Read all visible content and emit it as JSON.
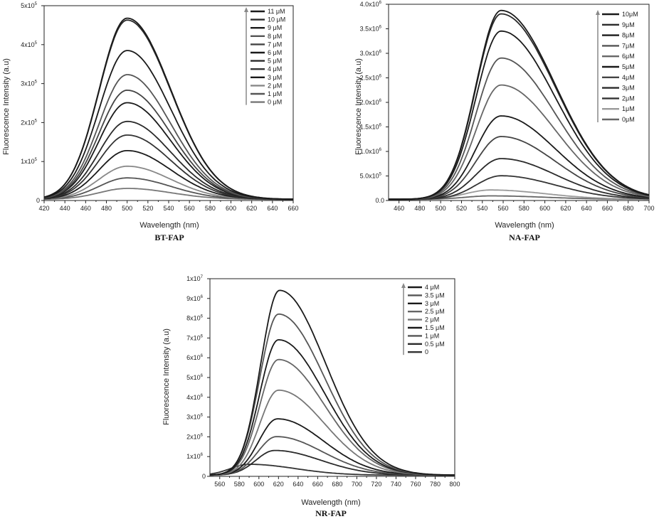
{
  "chart_data": [
    {
      "type": "line",
      "caption": "BT-FAP",
      "xlabel": "Wavelength (nm)",
      "ylabel": "Fluorescence Intensity (a.u)",
      "xlim": [
        420,
        660
      ],
      "ylim": [
        0,
        500000
      ],
      "xticks": [
        "420",
        "440",
        "460",
        "480",
        "500",
        "520",
        "540",
        "560",
        "580",
        "600",
        "620",
        "640",
        "660"
      ],
      "yticks": [
        {
          "value": 0,
          "base": "0",
          "exp": ""
        },
        {
          "value": 100000,
          "base": "1x10",
          "exp": "5"
        },
        {
          "value": 200000,
          "base": "2x10",
          "exp": "5"
        },
        {
          "value": 300000,
          "base": "3x10",
          "exp": "5"
        },
        {
          "value": 400000,
          "base": "4x10",
          "exp": "5"
        },
        {
          "value": 500000,
          "base": "5x10",
          "exp": "5"
        }
      ],
      "legend_position": "top-right",
      "series": [
        {
          "name": "11 μM",
          "peak_x": 500,
          "peak": 465000,
          "color": "#1a1a1a"
        },
        {
          "name": "10 μM",
          "peak_x": 500,
          "peak": 460000,
          "color": "#2a2a2a"
        },
        {
          "name": "9 μM",
          "peak_x": 500,
          "peak": 382000,
          "color": "#1a1a1a"
        },
        {
          "name": "8 μM",
          "peak_x": 500,
          "peak": 320000,
          "color": "#555555"
        },
        {
          "name": "7 μM",
          "peak_x": 500,
          "peak": 280000,
          "color": "#444444"
        },
        {
          "name": "6 μM",
          "peak_x": 500,
          "peak": 248000,
          "color": "#1a1a1a"
        },
        {
          "name": "5 μM",
          "peak_x": 500,
          "peak": 200000,
          "color": "#2a2a2a"
        },
        {
          "name": "4 μM",
          "peak_x": 500,
          "peak": 165000,
          "color": "#333333"
        },
        {
          "name": "3 μM",
          "peak_x": 500,
          "peak": 125000,
          "color": "#1a1a1a"
        },
        {
          "name": "2 μM",
          "peak_x": 500,
          "peak": 85000,
          "color": "#888888"
        },
        {
          "name": "1 μM",
          "peak_x": 500,
          "peak": 55000,
          "color": "#555555"
        },
        {
          "name": "0 μM",
          "peak_x": 500,
          "peak": 28000,
          "color": "#777777"
        }
      ]
    },
    {
      "type": "line",
      "caption": "NA-FAP",
      "xlabel": "Wavelength (nm)",
      "ylabel": "Fluorescence Intensity (a.u)",
      "xlim": [
        450,
        700
      ],
      "ylim": [
        0,
        4000000
      ],
      "xticks": [
        "460",
        "480",
        "500",
        "520",
        "540",
        "560",
        "580",
        "600",
        "620",
        "640",
        "660",
        "680",
        "700"
      ],
      "yticks": [
        {
          "value": 0,
          "base": "0.0",
          "exp": ""
        },
        {
          "value": 500000,
          "base": "5.0x10",
          "exp": "5"
        },
        {
          "value": 1000000,
          "base": "1.0x10",
          "exp": "6"
        },
        {
          "value": 1500000,
          "base": "1.5x10",
          "exp": "6"
        },
        {
          "value": 2000000,
          "base": "2.0x10",
          "exp": "6"
        },
        {
          "value": 2500000,
          "base": "2.5x10",
          "exp": "6"
        },
        {
          "value": 3000000,
          "base": "3.0x10",
          "exp": "6"
        },
        {
          "value": 3500000,
          "base": "3.5x10",
          "exp": "6"
        },
        {
          "value": 4000000,
          "base": "4.0x10",
          "exp": "6"
        }
      ],
      "legend_position": "top-right",
      "series": [
        {
          "name": "10μM",
          "peak_x": 558,
          "peak": 3850000,
          "color": "#1a1a1a"
        },
        {
          "name": "9μM",
          "peak_x": 558,
          "peak": 3780000,
          "color": "#2a2a2a"
        },
        {
          "name": "8μM",
          "peak_x": 558,
          "peak": 3430000,
          "color": "#1a1a1a"
        },
        {
          "name": "7μM",
          "peak_x": 558,
          "peak": 2880000,
          "color": "#555555"
        },
        {
          "name": "6μM",
          "peak_x": 558,
          "peak": 2330000,
          "color": "#666666"
        },
        {
          "name": "5μM",
          "peak_x": 558,
          "peak": 1700000,
          "color": "#1a1a1a"
        },
        {
          "name": "4μM",
          "peak_x": 558,
          "peak": 1280000,
          "color": "#444444"
        },
        {
          "name": "3μM",
          "peak_x": 558,
          "peak": 830000,
          "color": "#2a2a2a"
        },
        {
          "name": "2μM",
          "peak_x": 558,
          "peak": 480000,
          "color": "#333333"
        },
        {
          "name": "1μM",
          "peak_x": 548,
          "peak": 190000,
          "color": "#999999"
        },
        {
          "name": "0μM",
          "peak_x": 548,
          "peak": 70000,
          "color": "#666666"
        }
      ]
    },
    {
      "type": "line",
      "caption": "NR-FAP",
      "xlabel": "Wavelength (nm)",
      "ylabel": "Fluorescence Intensity (a.u)",
      "xlim": [
        550,
        800
      ],
      "ylim": [
        0,
        10000000
      ],
      "xticks": [
        "560",
        "580",
        "600",
        "620",
        "640",
        "660",
        "680",
        "700",
        "720",
        "740",
        "760",
        "780",
        "800"
      ],
      "yticks": [
        {
          "value": 0,
          "base": "0",
          "exp": ""
        },
        {
          "value": 1000000,
          "base": "1x10",
          "exp": "6"
        },
        {
          "value": 2000000,
          "base": "2x10",
          "exp": "6"
        },
        {
          "value": 3000000,
          "base": "3x10",
          "exp": "6"
        },
        {
          "value": 4000000,
          "base": "4x10",
          "exp": "6"
        },
        {
          "value": 5000000,
          "base": "5x10",
          "exp": "6"
        },
        {
          "value": 6000000,
          "base": "6x10",
          "exp": "6"
        },
        {
          "value": 7000000,
          "base": "7x10",
          "exp": "6"
        },
        {
          "value": 8000000,
          "base": "8x10",
          "exp": "6"
        },
        {
          "value": 9000000,
          "base": "9x10",
          "exp": "6"
        },
        {
          "value": 10000000,
          "base": "1x10",
          "exp": "7"
        }
      ],
      "legend_position": "top-right",
      "series": [
        {
          "name": "4 μM",
          "peak_x": 621,
          "peak": 9350000,
          "color": "#1a1a1a"
        },
        {
          "name": "3.5 μM",
          "peak_x": 620,
          "peak": 8150000,
          "color": "#555555"
        },
        {
          "name": "3 μM",
          "peak_x": 620,
          "peak": 6850000,
          "color": "#1a1a1a"
        },
        {
          "name": "2.5 μM",
          "peak_x": 620,
          "peak": 5850000,
          "color": "#666666"
        },
        {
          "name": "2 μM",
          "peak_x": 620,
          "peak": 4300000,
          "color": "#777777"
        },
        {
          "name": "1.5 μM",
          "peak_x": 619,
          "peak": 2850000,
          "color": "#1a1a1a"
        },
        {
          "name": "1 μM",
          "peak_x": 618,
          "peak": 1950000,
          "color": "#555555"
        },
        {
          "name": "0.5 μM",
          "peak_x": 616,
          "peak": 1250000,
          "color": "#2a2a2a"
        },
        {
          "name": "0",
          "peak_x": 590,
          "peak": 550000,
          "color": "#333333"
        }
      ]
    }
  ]
}
